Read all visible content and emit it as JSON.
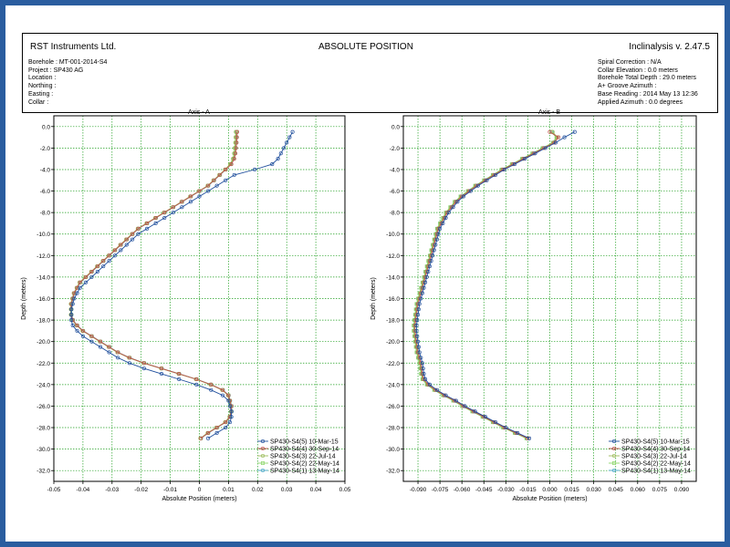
{
  "header": {
    "company": "RST Instruments Ltd.",
    "title": "ABSOLUTE POSITION",
    "version": "Inclinalysis v. 2.47.5",
    "left_meta": [
      "Borehole : MT-001-2014-S4",
      "Project : SP430 AG",
      "Location :",
      "Northing :",
      "Easting :",
      "Collar :"
    ],
    "right_meta": [
      "Spiral Correction : N/A",
      "Collar Elevation : 0.0 meters",
      "Borehole Total Depth : 29.0 meters",
      "A+ Groove Azimuth :",
      "Base Reading : 2014 May 13 12:36",
      "Applied Azimuth : 0.0 degrees"
    ]
  },
  "chart_data": [
    {
      "type": "line",
      "title": "Axis - A",
      "xlabel": "Absolute Position (meters)",
      "ylabel": "Depth (meters)",
      "xlim": [
        -0.05,
        0.05
      ],
      "ylim": [
        -33,
        1
      ],
      "grid": true,
      "x_ticks": [
        -0.05,
        -0.04,
        -0.03,
        -0.02,
        -0.01,
        0,
        0.01,
        0.02,
        0.03,
        0.04,
        0.05
      ],
      "x_tick_labels": [
        "-0.05",
        "-0.04",
        "-0.03",
        "-0.02",
        "-0.01",
        "0",
        "0.01",
        "0.02",
        "0.03",
        "0.04",
        "0.05"
      ],
      "y_ticks": [
        0,
        -2,
        -4,
        -6,
        -8,
        -10,
        -12,
        -14,
        -16,
        -18,
        -20,
        -22,
        -24,
        -26,
        -28,
        -30,
        -32
      ],
      "y_tick_labels": [
        "0.0",
        "-2.0",
        "-4.0",
        "-6.0",
        "-8.0",
        "-10.0",
        "-12.0",
        "-14.0",
        "-16.0",
        "-18.0",
        "-20.0",
        "-22.0",
        "-24.0",
        "-26.0",
        "-28.0",
        "-30.0",
        "-32.0"
      ],
      "legend_position": "bottom-right",
      "depths": [
        -0.5,
        -1.0,
        -1.5,
        -2.0,
        -2.5,
        -3.0,
        -3.5,
        -4.0,
        -4.5,
        -5.0,
        -5.5,
        -6.0,
        -6.5,
        -7.0,
        -7.5,
        -8.0,
        -8.5,
        -9.0,
        -9.5,
        -10.0,
        -10.5,
        -11.0,
        -11.5,
        -12.0,
        -12.5,
        -13.0,
        -13.5,
        -14.0,
        -14.5,
        -15.0,
        -15.5,
        -16.0,
        -16.5,
        -17.0,
        -17.5,
        -18.0,
        -18.5,
        -19.0,
        -19.5,
        -20.0,
        -20.5,
        -21.0,
        -21.5,
        -22.0,
        -22.5,
        -23.0,
        -23.5,
        -24.0,
        -24.5,
        -25.0,
        -25.5,
        -26.0,
        -26.5,
        -27.0,
        -27.5,
        -28.0,
        -28.5,
        -29.0
      ],
      "series": [
        {
          "name": "SP430-S4(5) 10-Mar-15",
          "color": "#1f4e9c",
          "marker": "circle",
          "x": [
            0.032,
            0.031,
            0.03,
            0.029,
            0.028,
            0.027,
            0.025,
            0.019,
            0.012,
            0.009,
            0.006,
            0.003,
            0.0,
            -0.003,
            -0.006,
            -0.009,
            -0.012,
            -0.015,
            -0.018,
            -0.021,
            -0.023,
            -0.025,
            -0.027,
            -0.029,
            -0.031,
            -0.033,
            -0.035,
            -0.037,
            -0.039,
            -0.041,
            -0.042,
            -0.043,
            -0.0435,
            -0.044,
            -0.044,
            -0.044,
            -0.0435,
            -0.042,
            -0.04,
            -0.037,
            -0.034,
            -0.031,
            -0.028,
            -0.024,
            -0.019,
            -0.013,
            -0.007,
            -0.001,
            0.004,
            0.008,
            0.01,
            0.0105,
            0.011,
            0.011,
            0.0105,
            0.009,
            0.006,
            0.003
          ]
        },
        {
          "name": "SP430-S4(4) 30-Sep-14",
          "color": "#c0504d",
          "marker": "circle",
          "x": [
            0.013,
            0.0129,
            0.0128,
            0.0126,
            0.0124,
            0.012,
            0.011,
            0.009,
            0.007,
            0.005,
            0.003,
            0.0,
            -0.003,
            -0.006,
            -0.009,
            -0.012,
            -0.015,
            -0.018,
            -0.021,
            -0.023,
            -0.025,
            -0.027,
            -0.029,
            -0.031,
            -0.033,
            -0.035,
            -0.037,
            -0.039,
            -0.041,
            -0.042,
            -0.043,
            -0.0435,
            -0.044,
            -0.044,
            -0.044,
            -0.0435,
            -0.042,
            -0.04,
            -0.037,
            -0.034,
            -0.031,
            -0.028,
            -0.024,
            -0.019,
            -0.013,
            -0.007,
            -0.001,
            0.004,
            0.008,
            0.01,
            0.0105,
            0.011,
            0.011,
            0.0105,
            0.009,
            0.006,
            0.003,
            0.0005
          ]
        },
        {
          "name": "SP430-S4(3) 22-Jul-14",
          "color": "#9bbb59",
          "marker": "circle",
          "x": [
            0.0125,
            0.0124,
            0.0123,
            0.0121,
            0.0119,
            0.0115,
            0.0105,
            0.0088,
            0.0068,
            0.0048,
            0.0028,
            -0.0002,
            -0.0032,
            -0.0062,
            -0.0092,
            -0.0122,
            -0.0152,
            -0.0182,
            -0.0212,
            -0.0232,
            -0.0252,
            -0.0272,
            -0.0292,
            -0.0312,
            -0.0332,
            -0.0352,
            -0.0372,
            -0.0392,
            -0.0412,
            -0.0422,
            -0.0432,
            -0.0437,
            -0.0442,
            -0.0442,
            -0.0442,
            -0.0437,
            -0.0422,
            -0.0402,
            -0.0372,
            -0.0342,
            -0.0312,
            -0.0282,
            -0.0242,
            -0.0192,
            -0.0132,
            -0.0072,
            -0.0012,
            0.0038,
            0.0078,
            0.0098,
            0.0103,
            0.0108,
            0.0108,
            0.0103,
            0.0088,
            0.0058,
            0.0028,
            0.0003
          ]
        },
        {
          "name": "SP430-S4(2) 22-May-14",
          "color": "#8cd66a",
          "marker": "square",
          "x": [
            0.0127,
            0.0126,
            0.0125,
            0.0123,
            0.0121,
            0.0117,
            0.0107,
            0.009,
            0.007,
            0.005,
            0.003,
            0.0,
            -0.003,
            -0.006,
            -0.009,
            -0.012,
            -0.015,
            -0.018,
            -0.021,
            -0.023,
            -0.025,
            -0.027,
            -0.029,
            -0.031,
            -0.033,
            -0.035,
            -0.037,
            -0.039,
            -0.041,
            -0.042,
            -0.043,
            -0.0435,
            -0.044,
            -0.044,
            -0.044,
            -0.0435,
            -0.042,
            -0.04,
            -0.037,
            -0.034,
            -0.031,
            -0.028,
            -0.024,
            -0.019,
            -0.013,
            -0.007,
            -0.001,
            0.004,
            0.008,
            0.01,
            0.0105,
            0.011,
            0.011,
            0.0105,
            0.009,
            0.006,
            0.003,
            0.0005
          ]
        },
        {
          "name": "SP430-S4(1) 13-May-14",
          "color": "#4aa7c8",
          "marker": "circle",
          "x": [
            0.0128,
            0.0127,
            0.0126,
            0.0124,
            0.0122,
            0.0118,
            0.0108,
            0.0091,
            0.0071,
            0.0051,
            0.0031,
            0.0001,
            -0.0029,
            -0.0059,
            -0.0089,
            -0.0119,
            -0.0149,
            -0.0179,
            -0.0209,
            -0.0229,
            -0.0249,
            -0.0269,
            -0.0289,
            -0.0309,
            -0.0329,
            -0.0349,
            -0.0369,
            -0.0389,
            -0.0409,
            -0.0419,
            -0.0429,
            -0.0434,
            -0.0439,
            -0.0439,
            -0.0439,
            -0.0434,
            -0.0419,
            -0.0399,
            -0.0369,
            -0.0339,
            -0.0309,
            -0.0279,
            -0.0239,
            -0.0189,
            -0.0129,
            -0.0069,
            -0.0009,
            0.0041,
            0.0081,
            0.0101,
            0.0106,
            0.0111,
            0.0111,
            0.0106,
            0.0091,
            0.0061,
            0.0031,
            0.0006
          ]
        }
      ]
    },
    {
      "type": "line",
      "title": "Axis - B",
      "xlabel": "Absolute Position (meters)",
      "ylabel": "Depth (meters)",
      "xlim": [
        -0.1,
        0.1
      ],
      "ylim": [
        -33,
        1
      ],
      "grid": true,
      "x_ticks": [
        -0.09,
        -0.075,
        -0.06,
        -0.045,
        -0.03,
        -0.015,
        0,
        0.015,
        0.03,
        0.045,
        0.06,
        0.075,
        0.09
      ],
      "x_tick_labels": [
        "-0.090",
        "-0.075",
        "-0.060",
        "-0.045",
        "-0.030",
        "-0.015",
        "0.000",
        "0.015",
        "0.030",
        "0.045",
        "0.060",
        "0.075",
        "0.090"
      ],
      "y_ticks": [
        0,
        -2,
        -4,
        -6,
        -8,
        -10,
        -12,
        -14,
        -16,
        -18,
        -20,
        -22,
        -24,
        -26,
        -28,
        -30,
        -32
      ],
      "y_tick_labels": [
        "0.0",
        "-2.0",
        "-4.0",
        "-6.0",
        "-8.0",
        "-10.0",
        "-12.0",
        "-14.0",
        "-16.0",
        "-18.0",
        "-20.0",
        "-22.0",
        "-24.0",
        "-26.0",
        "-28.0",
        "-30.0",
        "-32.0"
      ],
      "legend_position": "bottom-right",
      "depths": [
        -0.5,
        -1.0,
        -1.5,
        -2.0,
        -2.5,
        -3.0,
        -3.5,
        -4.0,
        -4.5,
        -5.0,
        -5.5,
        -6.0,
        -6.5,
        -7.0,
        -7.5,
        -8.0,
        -8.5,
        -9.0,
        -9.5,
        -10.0,
        -10.5,
        -11.0,
        -11.5,
        -12.0,
        -12.5,
        -13.0,
        -13.5,
        -14.0,
        -14.5,
        -15.0,
        -15.5,
        -16.0,
        -16.5,
        -17.0,
        -17.5,
        -18.0,
        -18.5,
        -19.0,
        -19.5,
        -20.0,
        -20.5,
        -21.0,
        -21.5,
        -22.0,
        -22.5,
        -23.0,
        -23.5,
        -24.0,
        -24.5,
        -25.0,
        -25.5,
        -26.0,
        -26.5,
        -27.0,
        -27.5,
        -28.0,
        -28.5,
        -29.0
      ],
      "series": [
        {
          "name": "SP430-S4(5) 10-Mar-15",
          "color": "#1f4e9c",
          "marker": "circle",
          "x": [
            0.017,
            0.01,
            0.004,
            -0.003,
            -0.01,
            -0.017,
            -0.024,
            -0.031,
            -0.037,
            -0.043,
            -0.049,
            -0.054,
            -0.059,
            -0.063,
            -0.066,
            -0.069,
            -0.071,
            -0.073,
            -0.075,
            -0.076,
            -0.077,
            -0.078,
            -0.079,
            -0.08,
            -0.081,
            -0.082,
            -0.083,
            -0.084,
            -0.085,
            -0.086,
            -0.087,
            -0.088,
            -0.089,
            -0.0895,
            -0.09,
            -0.0905,
            -0.091,
            -0.091,
            -0.0905,
            -0.09,
            -0.0895,
            -0.089,
            -0.088,
            -0.087,
            -0.0865,
            -0.086,
            -0.085,
            -0.082,
            -0.077,
            -0.071,
            -0.064,
            -0.058,
            -0.051,
            -0.044,
            -0.037,
            -0.03,
            -0.022,
            -0.014
          ]
        },
        {
          "name": "SP430-S4(4) 30-Sep-14",
          "color": "#c0504d",
          "marker": "circle",
          "x": [
            0.0,
            0.006,
            0.003,
            -0.004,
            -0.011,
            -0.018,
            -0.025,
            -0.032,
            -0.038,
            -0.044,
            -0.05,
            -0.055,
            -0.06,
            -0.064,
            -0.067,
            -0.07,
            -0.072,
            -0.074,
            -0.076,
            -0.077,
            -0.078,
            -0.079,
            -0.08,
            -0.081,
            -0.082,
            -0.083,
            -0.084,
            -0.085,
            -0.086,
            -0.087,
            -0.088,
            -0.089,
            -0.09,
            -0.0905,
            -0.091,
            -0.0915,
            -0.092,
            -0.092,
            -0.0915,
            -0.091,
            -0.0905,
            -0.09,
            -0.089,
            -0.088,
            -0.0875,
            -0.087,
            -0.086,
            -0.083,
            -0.078,
            -0.072,
            -0.065,
            -0.059,
            -0.052,
            -0.045,
            -0.038,
            -0.031,
            -0.023,
            -0.015
          ]
        },
        {
          "name": "SP430-S4(3) 22-Jul-14",
          "color": "#9bbb59",
          "marker": "circle",
          "x": [
            0.002,
            0.005,
            0.0025,
            -0.0045,
            -0.0115,
            -0.0185,
            -0.0255,
            -0.0325,
            -0.0385,
            -0.0445,
            -0.0505,
            -0.0555,
            -0.0605,
            -0.0645,
            -0.0675,
            -0.0705,
            -0.0725,
            -0.0745,
            -0.0765,
            -0.0775,
            -0.0785,
            -0.0795,
            -0.0805,
            -0.0815,
            -0.0825,
            -0.0835,
            -0.0845,
            -0.0855,
            -0.0865,
            -0.0875,
            -0.0885,
            -0.0895,
            -0.0905,
            -0.091,
            -0.0915,
            -0.092,
            -0.0925,
            -0.0925,
            -0.092,
            -0.0915,
            -0.091,
            -0.0905,
            -0.0895,
            -0.0885,
            -0.088,
            -0.0875,
            -0.0865,
            -0.0835,
            -0.0785,
            -0.0725,
            -0.0655,
            -0.0595,
            -0.0525,
            -0.0455,
            -0.0385,
            -0.0315,
            -0.0235,
            -0.0155
          ]
        },
        {
          "name": "SP430-S4(2) 22-May-14",
          "color": "#8cd66a",
          "marker": "square",
          "x": [
            0.001,
            0.0045,
            0.002,
            -0.005,
            -0.012,
            -0.019,
            -0.026,
            -0.033,
            -0.039,
            -0.045,
            -0.051,
            -0.056,
            -0.061,
            -0.065,
            -0.068,
            -0.071,
            -0.073,
            -0.075,
            -0.077,
            -0.078,
            -0.079,
            -0.08,
            -0.081,
            -0.082,
            -0.083,
            -0.084,
            -0.085,
            -0.086,
            -0.087,
            -0.088,
            -0.089,
            -0.09,
            -0.091,
            -0.0915,
            -0.092,
            -0.0925,
            -0.093,
            -0.093,
            -0.0925,
            -0.092,
            -0.0915,
            -0.091,
            -0.09,
            -0.089,
            -0.0885,
            -0.088,
            -0.087,
            -0.084,
            -0.079,
            -0.073,
            -0.066,
            -0.06,
            -0.053,
            -0.046,
            -0.039,
            -0.032,
            -0.024,
            -0.016
          ]
        },
        {
          "name": "SP430-S4(1) 13-May-14",
          "color": "#4aa7c8",
          "marker": "circle",
          "x": [
            0.0015,
            0.0048,
            0.0022,
            -0.0048,
            -0.0118,
            -0.0188,
            -0.0258,
            -0.0328,
            -0.0388,
            -0.0448,
            -0.0508,
            -0.0558,
            -0.0608,
            -0.0648,
            -0.0678,
            -0.0708,
            -0.0728,
            -0.0748,
            -0.0768,
            -0.0778,
            -0.0788,
            -0.0798,
            -0.0808,
            -0.0818,
            -0.0828,
            -0.0838,
            -0.0848,
            -0.0858,
            -0.0868,
            -0.0878,
            -0.0888,
            -0.0898,
            -0.0908,
            -0.0913,
            -0.0918,
            -0.0923,
            -0.0928,
            -0.0928,
            -0.0923,
            -0.0918,
            -0.0913,
            -0.0908,
            -0.0898,
            -0.0888,
            -0.0883,
            -0.0878,
            -0.0868,
            -0.0838,
            -0.0788,
            -0.0728,
            -0.0658,
            -0.0598,
            -0.0528,
            -0.0458,
            -0.0388,
            -0.0318,
            -0.0238,
            -0.0158
          ]
        }
      ]
    }
  ]
}
